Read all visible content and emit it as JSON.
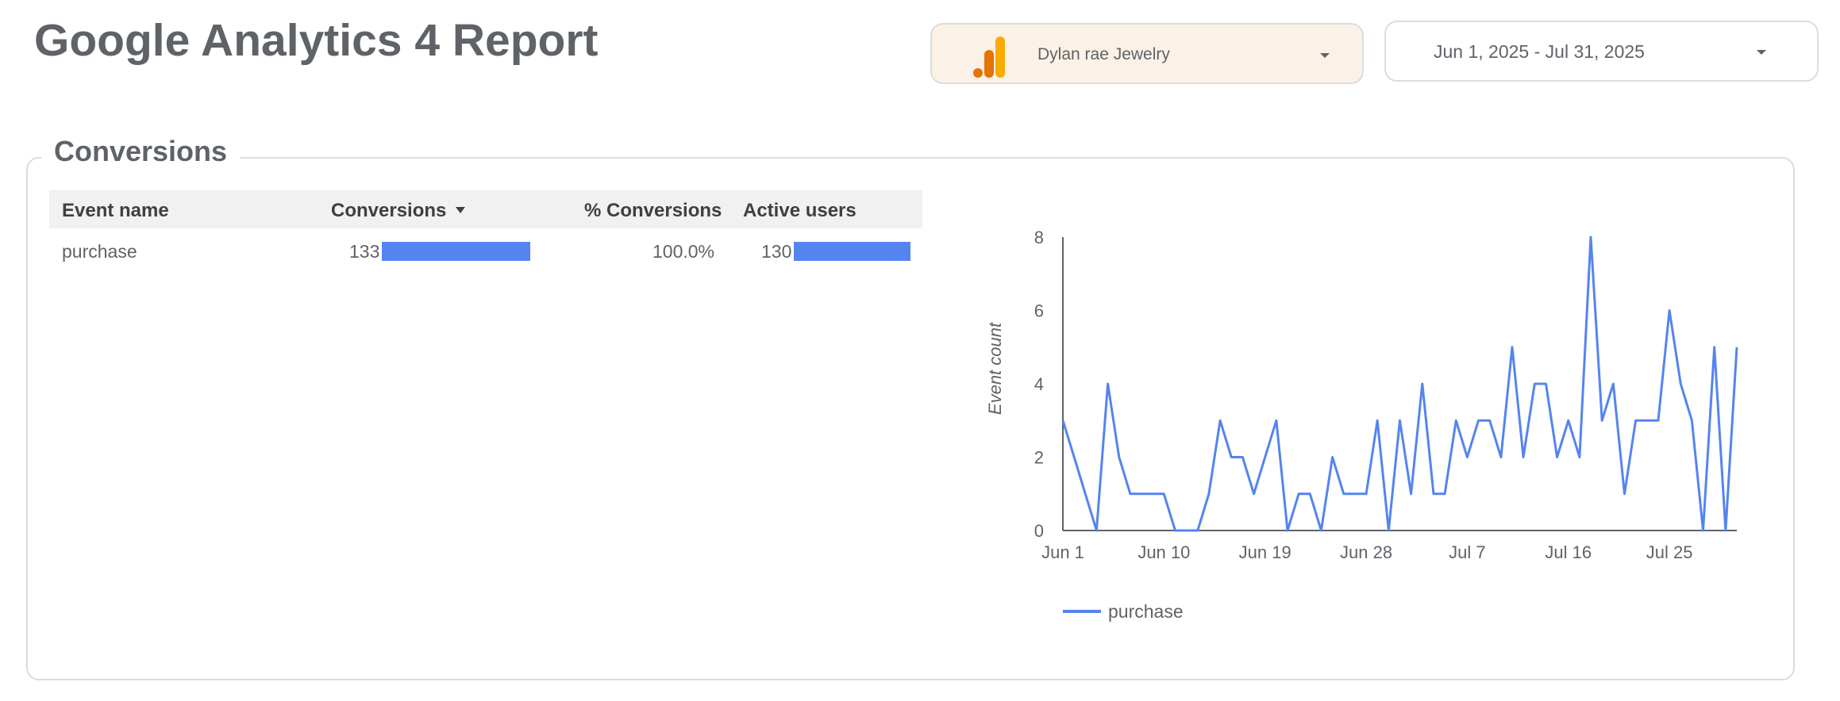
{
  "header": {
    "title": "Google Analytics 4 Report",
    "account": {
      "label": "Dylan rae Jewelry",
      "icon": "analytics-logo-icon"
    },
    "date_range": {
      "label": "Jun 1, 2025 - Jul 31, 2025"
    }
  },
  "colors": {
    "accent": "#5584f0",
    "account_bg": "#fcf1e6",
    "logo_orange": "#e8710a",
    "logo_yellow": "#f9ab00"
  },
  "conversions": {
    "section_title": "Conversions",
    "table": {
      "columns": [
        "Event name",
        "Conversions",
        "% Conversions",
        "Active users"
      ],
      "sort_column": "Conversions",
      "rows": [
        {
          "event_name": "purchase",
          "conversions": "133",
          "pct_conversions": "100.0%",
          "active_users": "130",
          "conversions_bar_fraction": 1.0,
          "active_users_bar_fraction": 0.977
        }
      ]
    }
  },
  "chart_data": {
    "type": "line",
    "title": "",
    "xlabel": "",
    "ylabel": "Event count",
    "ylim": [
      0,
      8
    ],
    "yticks": [
      0,
      2,
      4,
      6,
      8
    ],
    "xtick_labels": [
      "Jun 1",
      "Jun 10",
      "Jun 19",
      "Jun 28",
      "Jul 7",
      "Jul 16",
      "Jul 25"
    ],
    "x_start": "2025-06-01",
    "x_end": "2025-07-31",
    "legend": "bottom-left",
    "series": [
      {
        "name": "purchase",
        "color": "#5584f0",
        "values": [
          3,
          2,
          1,
          0,
          4,
          2,
          1,
          1,
          1,
          1,
          0,
          0,
          0,
          1,
          3,
          2,
          2,
          1,
          2,
          3,
          0,
          1,
          1,
          0,
          2,
          1,
          1,
          1,
          3,
          0,
          3,
          1,
          4,
          1,
          1,
          3,
          2,
          3,
          3,
          2,
          5,
          2,
          4,
          4,
          2,
          3,
          2,
          8,
          3,
          4,
          1,
          3,
          3,
          3,
          6,
          4,
          3,
          0,
          5,
          0,
          5
        ]
      }
    ]
  }
}
